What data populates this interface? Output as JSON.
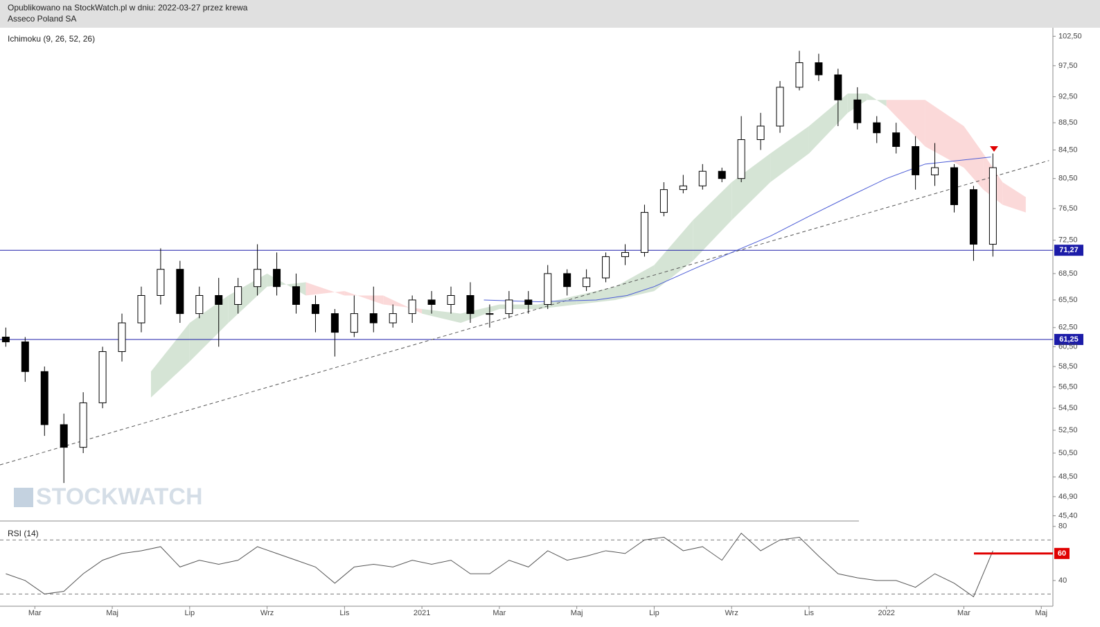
{
  "header": {
    "published": "Opublikowano na StockWatch.pl w dniu: 2022-03-27 przez krewa",
    "instrument": "Asseco Poland SA"
  },
  "watermark": "STOCKWATCH",
  "chart_data": [
    {
      "type": "candlestick",
      "title": "Ichimoku (9, 26, 52, 26)",
      "log_scale": true,
      "xlim": [
        1.1,
        28.3
      ],
      "ylim": [
        45,
        104
      ],
      "yticks": [
        {
          "value": 102.5,
          "label": "102,50"
        },
        {
          "value": 97.5,
          "label": "97,50"
        },
        {
          "value": 92.5,
          "label": "92,50"
        },
        {
          "value": 88.5,
          "label": "88,50"
        },
        {
          "value": 84.5,
          "label": "84,50"
        },
        {
          "value": 80.5,
          "label": "80,50"
        },
        {
          "value": 76.5,
          "label": "76,50"
        },
        {
          "value": 72.5,
          "label": "72,50"
        },
        {
          "value": 68.5,
          "label": "68,50"
        },
        {
          "value": 65.5,
          "label": "65,50"
        },
        {
          "value": 62.5,
          "label": "62,50"
        },
        {
          "value": 60.5,
          "label": "60,50"
        },
        {
          "value": 58.5,
          "label": "58,50"
        },
        {
          "value": 56.5,
          "label": "56,50"
        },
        {
          "value": 54.5,
          "label": "54,50"
        },
        {
          "value": 52.5,
          "label": "52,50"
        },
        {
          "value": 50.5,
          "label": "50,50"
        },
        {
          "value": 48.5,
          "label": "48,50"
        },
        {
          "value": 46.9,
          "label": "46,90"
        },
        {
          "value": 45.4,
          "label": "45,40"
        }
      ],
      "x": [
        1.25,
        1.75,
        2.25,
        2.75,
        3.25,
        3.75,
        4.25,
        4.75,
        5.25,
        5.75,
        6.25,
        6.75,
        7.25,
        7.75,
        8.25,
        8.75,
        9.25,
        9.75,
        10.25,
        10.75,
        11.25,
        11.75,
        12.25,
        12.75,
        13.25,
        13.75,
        14.25,
        14.75,
        15.25,
        15.75,
        16.25,
        16.75,
        17.25,
        17.75,
        18.25,
        18.75,
        19.25,
        19.75,
        20.25,
        20.75,
        21.25,
        21.75,
        22.25,
        22.75,
        23.25,
        23.75,
        24.25,
        24.75,
        25.25,
        25.75,
        26.25,
        26.75
      ],
      "open": [
        61.5,
        61,
        58,
        53,
        51,
        55,
        60,
        63,
        66,
        69,
        64,
        66,
        65,
        67,
        69,
        67,
        65,
        64,
        62,
        64,
        63,
        64,
        65.5,
        65,
        66,
        64,
        64,
        65.5,
        65,
        68.5,
        67,
        68,
        70.5,
        71,
        76,
        79,
        79.5,
        81.5,
        80.5,
        86,
        88,
        94,
        98,
        96,
        92,
        88.5,
        87,
        85,
        81,
        82,
        79,
        72
      ],
      "high": [
        62.5,
        61.5,
        58.5,
        54,
        56,
        60.5,
        64,
        67,
        71.5,
        70,
        67,
        68,
        68,
        72,
        71,
        68.5,
        66,
        64.5,
        66,
        67,
        65,
        66,
        66.5,
        67,
        67.5,
        65,
        66.5,
        66.5,
        69.5,
        69,
        69,
        71,
        72,
        77,
        80,
        81,
        82.5,
        82,
        89.5,
        90,
        95,
        100,
        99.5,
        97,
        94,
        89.5,
        88.5,
        86.5,
        85.5,
        82.5,
        79.5,
        84
      ],
      "low": [
        60.5,
        57,
        52,
        48,
        50.5,
        54.5,
        59,
        62,
        65,
        63,
        63.5,
        60.5,
        64,
        66,
        66,
        64,
        62,
        59.5,
        61.5,
        62,
        62.5,
        63,
        64,
        64,
        63,
        62.5,
        63.5,
        64,
        64.5,
        66,
        66.5,
        67.5,
        69.5,
        70.5,
        75.5,
        78.5,
        79,
        80,
        80,
        84.5,
        87,
        93.5,
        95,
        88,
        87.5,
        85.5,
        84,
        79,
        79.5,
        76,
        70,
        70.5
      ],
      "close": [
        61,
        58,
        53,
        51,
        55,
        60,
        63,
        66,
        69,
        64,
        66,
        65,
        67,
        69,
        67,
        65,
        64,
        62,
        64,
        63,
        64,
        65.5,
        65,
        66,
        64,
        64,
        65.5,
        65,
        68.5,
        67,
        68,
        70.5,
        71,
        76,
        79,
        79.5,
        81.5,
        80.5,
        86,
        88,
        94,
        98,
        96,
        92,
        88.5,
        87,
        85,
        81,
        82,
        77,
        72,
        82
      ],
      "cloud": {
        "x": [
          5,
          6,
          7,
          8,
          9,
          10,
          11,
          12,
          13,
          14,
          15,
          16,
          17,
          18,
          19,
          20,
          21,
          22,
          23,
          23.5,
          24,
          25,
          26,
          26.5,
          27,
          27.6
        ],
        "span_a": [
          58,
          63,
          66,
          68.5,
          66,
          66.5,
          65,
          64.5,
          64,
          65,
          65,
          66,
          67,
          69.5,
          75,
          80,
          84,
          88,
          93,
          93,
          91,
          85,
          82,
          79,
          77,
          76
        ],
        "span_b": [
          55.5,
          59,
          63,
          67,
          67.5,
          66,
          66,
          64,
          63,
          64.5,
          64.5,
          65,
          65.5,
          66.5,
          70,
          75,
          80,
          84,
          90,
          92,
          92,
          92,
          88,
          84,
          80,
          78
        ],
        "color_up": "#d5e4d5",
        "color_down": "#fbd9d9"
      },
      "moving_average": {
        "x": [
          13.6,
          15,
          16.5,
          17.3,
          18,
          19,
          20,
          21,
          22,
          23,
          24,
          25,
          26.7
        ],
        "values": [
          65.5,
          65.3,
          65.5,
          66,
          67,
          69,
          71,
          73,
          75.5,
          78,
          80.5,
          82.5,
          83.5
        ],
        "color": "#4a5bd6"
      },
      "trendline": {
        "x": [
          1.1,
          28.2
        ],
        "values": [
          49.5,
          83
        ],
        "color": "#555"
      },
      "levels": [
        {
          "value": 71.27,
          "label": "71,27"
        },
        {
          "value": 61.25,
          "label": "61,25"
        }
      ],
      "level_color": "#1c1ca8"
    },
    {
      "type": "line",
      "title": "RSI (14)",
      "xlim": [
        1.1,
        28.3
      ],
      "ylim": [
        21,
        84
      ],
      "yticks": [
        80,
        40
      ],
      "levels": [
        70,
        30
      ],
      "color": "#555",
      "xticks": [
        {
          "value": 2,
          "label": "Mar"
        },
        {
          "value": 4,
          "label": "Maj"
        },
        {
          "value": 6,
          "label": "Lip"
        },
        {
          "value": 8,
          "label": "Wrz"
        },
        {
          "value": 10,
          "label": "Lis"
        },
        {
          "value": 12,
          "label": "2021"
        },
        {
          "value": 14,
          "label": "Mar"
        },
        {
          "value": 16,
          "label": "Maj"
        },
        {
          "value": 18,
          "label": "Lip"
        },
        {
          "value": 20,
          "label": "Wrz"
        },
        {
          "value": 22,
          "label": "Lis"
        },
        {
          "value": 24,
          "label": "2022"
        },
        {
          "value": 26,
          "label": "Mar"
        },
        {
          "value": 28,
          "label": "Maj"
        }
      ],
      "x": [
        1.25,
        1.75,
        2.25,
        2.75,
        3.25,
        3.75,
        4.25,
        4.75,
        5.25,
        5.75,
        6.25,
        6.75,
        7.25,
        7.75,
        8.25,
        8.75,
        9.25,
        9.75,
        10.25,
        10.75,
        11.25,
        11.75,
        12.25,
        12.75,
        13.25,
        13.75,
        14.25,
        14.75,
        15.25,
        15.75,
        16.25,
        16.75,
        17.25,
        17.75,
        18.25,
        18.75,
        19.25,
        19.75,
        20.25,
        20.75,
        21.25,
        21.75,
        22.25,
        22.75,
        23.25,
        23.75,
        24.25,
        24.75,
        25.25,
        25.75,
        26.25,
        26.75
      ],
      "values": [
        45,
        40,
        30,
        32,
        45,
        55,
        60,
        62,
        65,
        50,
        55,
        52,
        55,
        65,
        60,
        55,
        50,
        38,
        50,
        52,
        50,
        55,
        52,
        55,
        45,
        45,
        55,
        50,
        62,
        55,
        58,
        62,
        60,
        70,
        72,
        62,
        65,
        55,
        75,
        62,
        70,
        72,
        58,
        45,
        42,
        40,
        40,
        35,
        45,
        38,
        28,
        62
      ],
      "highlight": {
        "value": 60,
        "x": [
          26.26,
          28.3
        ],
        "color": "#e00000"
      }
    }
  ]
}
